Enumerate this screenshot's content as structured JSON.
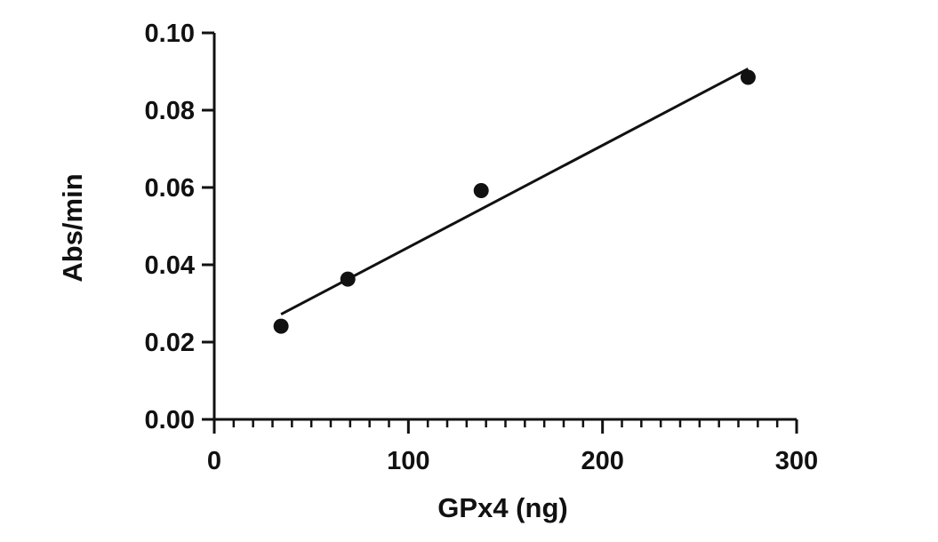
{
  "chart_data": {
    "type": "scatter",
    "title": "",
    "xlabel": "GPx4 (ng)",
    "ylabel": "Abs/min",
    "xlim": [
      0,
      300
    ],
    "ylim": [
      0,
      0.1
    ],
    "x_ticks": [
      {
        "value": 0,
        "label": "0"
      },
      {
        "value": 100,
        "label": "100"
      },
      {
        "value": 200,
        "label": "200"
      },
      {
        "value": 300,
        "label": "300"
      }
    ],
    "x_minor_step": 10,
    "y_ticks": [
      {
        "value": 0,
        "label": "0.00"
      },
      {
        "value": 0.02,
        "label": "0.02"
      },
      {
        "value": 0.04,
        "label": "0.04"
      },
      {
        "value": 0.06,
        "label": "0.06"
      },
      {
        "value": 0.08,
        "label": "0.08"
      },
      {
        "value": 0.1,
        "label": "0.10"
      }
    ],
    "series": [
      {
        "points": [
          {
            "x": 34.4,
            "y": 0.0241
          },
          {
            "x": 68.8,
            "y": 0.0363
          },
          {
            "x": 137.5,
            "y": 0.0592
          },
          {
            "x": 275,
            "y": 0.0885
          }
        ],
        "color": "#111111"
      }
    ],
    "fit_line": {
      "x": [
        34.4,
        275
      ],
      "y": [
        0.0272,
        0.0907
      ]
    },
    "grid": false,
    "legend": "none"
  }
}
